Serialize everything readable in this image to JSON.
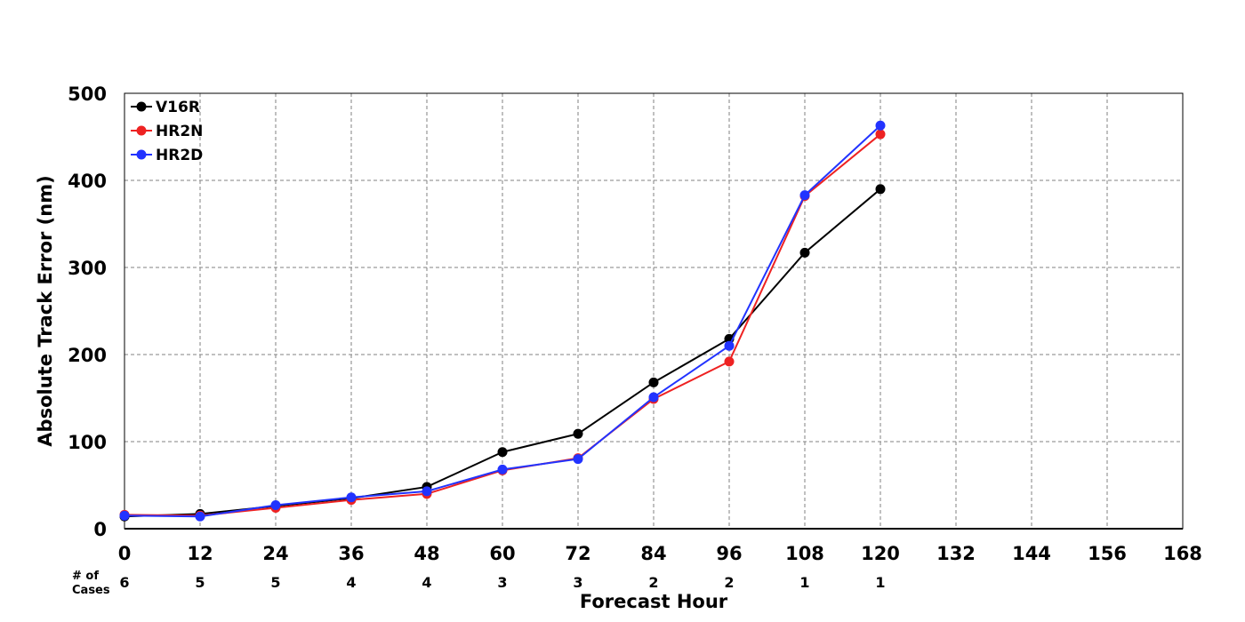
{
  "chart_data": {
    "type": "line",
    "title": "",
    "xlabel": "Forecast Hour",
    "ylabel": "Absolute Track Error (nm)",
    "xlim": [
      0,
      168
    ],
    "ylim": [
      0,
      500
    ],
    "x_ticks": [
      0,
      12,
      24,
      36,
      48,
      60,
      72,
      84,
      96,
      108,
      120,
      132,
      144,
      156,
      168
    ],
    "y_ticks": [
      0,
      100,
      200,
      300,
      400,
      500
    ],
    "grid": true,
    "legend_position": "top-left",
    "cases_label": "# of\nCases",
    "cases": [
      {
        "x": 0,
        "n": "6"
      },
      {
        "x": 12,
        "n": "5"
      },
      {
        "x": 24,
        "n": "5"
      },
      {
        "x": 36,
        "n": "4"
      },
      {
        "x": 48,
        "n": "4"
      },
      {
        "x": 60,
        "n": "3"
      },
      {
        "x": 72,
        "n": "3"
      },
      {
        "x": 84,
        "n": "2"
      },
      {
        "x": 96,
        "n": "2"
      },
      {
        "x": 108,
        "n": "1"
      },
      {
        "x": 120,
        "n": "1"
      }
    ],
    "series": [
      {
        "name": "V16R",
        "color": "#000000",
        "x": [
          0,
          12,
          24,
          36,
          48,
          60,
          72,
          84,
          96,
          108,
          120
        ],
        "values": [
          14,
          17,
          26,
          35,
          48,
          88,
          109,
          168,
          218,
          317,
          390
        ]
      },
      {
        "name": "HR2N",
        "color": "#ee2222",
        "x": [
          0,
          12,
          24,
          36,
          48,
          60,
          72,
          84,
          96,
          108,
          120
        ],
        "values": [
          16,
          15,
          24,
          33,
          40,
          67,
          81,
          149,
          192,
          382,
          453
        ]
      },
      {
        "name": "HR2D",
        "color": "#2233ff",
        "x": [
          0,
          12,
          24,
          36,
          48,
          60,
          72,
          84,
          96,
          108,
          120
        ],
        "values": [
          15,
          14,
          27,
          36,
          43,
          68,
          80,
          151,
          210,
          383,
          463
        ]
      }
    ]
  }
}
